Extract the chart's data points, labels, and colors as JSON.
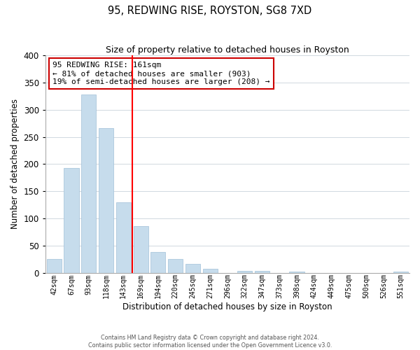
{
  "title": "95, REDWING RISE, ROYSTON, SG8 7XD",
  "subtitle": "Size of property relative to detached houses in Royston",
  "xlabel": "Distribution of detached houses by size in Royston",
  "ylabel": "Number of detached properties",
  "bar_color": "#c6dcec",
  "bar_edge_color": "#a0c0d8",
  "background_color": "#ffffff",
  "grid_color": "#d0d8e0",
  "categories": [
    "42sqm",
    "67sqm",
    "93sqm",
    "118sqm",
    "143sqm",
    "169sqm",
    "194sqm",
    "220sqm",
    "245sqm",
    "271sqm",
    "296sqm",
    "322sqm",
    "347sqm",
    "373sqm",
    "398sqm",
    "424sqm",
    "449sqm",
    "475sqm",
    "500sqm",
    "526sqm",
    "551sqm"
  ],
  "values": [
    25,
    193,
    328,
    266,
    130,
    86,
    38,
    26,
    17,
    8,
    0,
    4,
    3,
    0,
    2,
    0,
    0,
    0,
    0,
    0,
    2
  ],
  "ylim": [
    0,
    400
  ],
  "yticks": [
    0,
    50,
    100,
    150,
    200,
    250,
    300,
    350,
    400
  ],
  "redline_index": 5,
  "annotation_text": "95 REDWING RISE: 161sqm\n← 81% of detached houses are smaller (903)\n19% of semi-detached houses are larger (208) →",
  "annotation_box_color": "#ffffff",
  "annotation_box_edge_color": "#cc0000",
  "footer_line1": "Contains HM Land Registry data © Crown copyright and database right 2024.",
  "footer_line2": "Contains public sector information licensed under the Open Government Licence v3.0."
}
